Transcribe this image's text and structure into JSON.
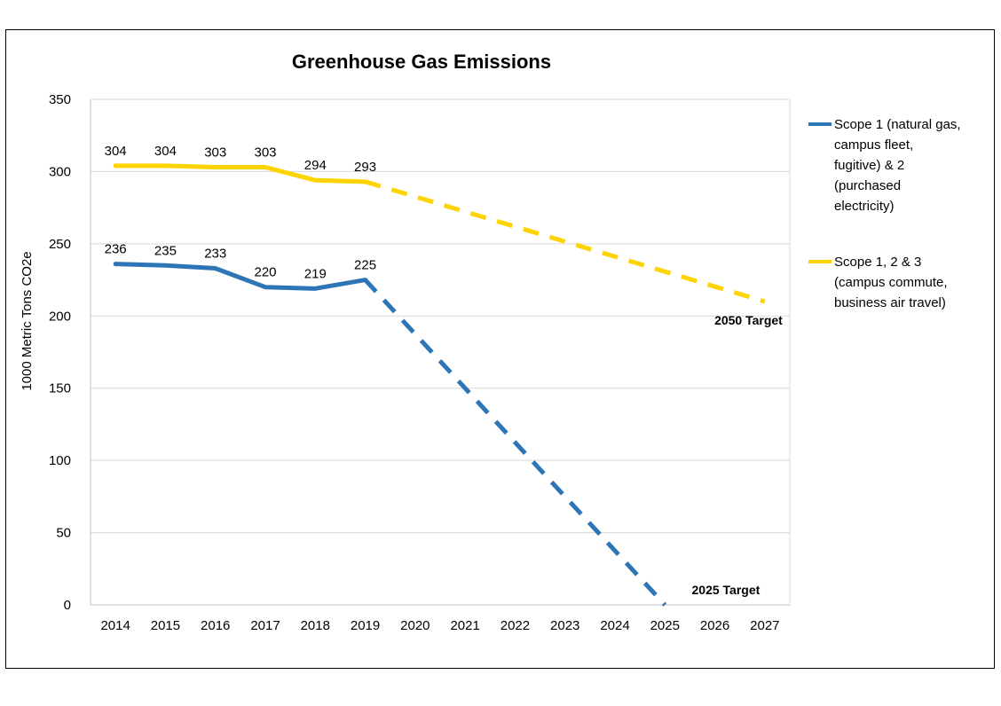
{
  "chart_data": {
    "type": "line",
    "title": "Greenhouse Gas Emissions",
    "ylabel": "1000 Metric Tons CO2e",
    "xlabel": "",
    "ylim": [
      0,
      350
    ],
    "yticks": [
      0,
      50,
      100,
      150,
      200,
      250,
      300,
      350
    ],
    "categories": [
      "2014",
      "2015",
      "2016",
      "2017",
      "2018",
      "2019",
      "2020",
      "2021",
      "2022",
      "2023",
      "2024",
      "2025",
      "2026",
      "2027"
    ],
    "grid": "horizontal",
    "legend_position": "right",
    "series": [
      {
        "name": "Scope 1 (natural gas, campus fleet, fugitive) & 2 (purchased electricity)",
        "legend_lines": [
          "Scope 1 (natural gas,",
          "campus fleet,",
          "fugitive) & 2",
          "(purchased",
          "electricity)"
        ],
        "color": "#2E75B6",
        "actual": {
          "x": [
            "2014",
            "2015",
            "2016",
            "2017",
            "2018",
            "2019"
          ],
          "values": [
            236,
            235,
            233,
            220,
            219,
            225
          ]
        },
        "labels": [
          "236",
          "235",
          "233",
          "220",
          "219",
          "225"
        ],
        "projection": {
          "x": [
            "2019",
            "2025"
          ],
          "values": [
            225,
            0
          ],
          "style": "dashed"
        },
        "target_label": "2025 Target"
      },
      {
        "name": "Scope 1, 2 & 3 (campus commute, business air travel)",
        "legend_lines": [
          "Scope 1, 2 & 3",
          "(campus commute,",
          "business air travel)"
        ],
        "color": "#FFD300",
        "actual": {
          "x": [
            "2014",
            "2015",
            "2016",
            "2017",
            "2018",
            "2019"
          ],
          "values": [
            304,
            304,
            303,
            303,
            294,
            293
          ]
        },
        "labels": [
          "304",
          "304",
          "303",
          "303",
          "294",
          "293"
        ],
        "projection": {
          "x": [
            "2019",
            "2027"
          ],
          "values": [
            293,
            210
          ],
          "style": "dashed"
        },
        "target_label": "2050 Target"
      }
    ]
  }
}
